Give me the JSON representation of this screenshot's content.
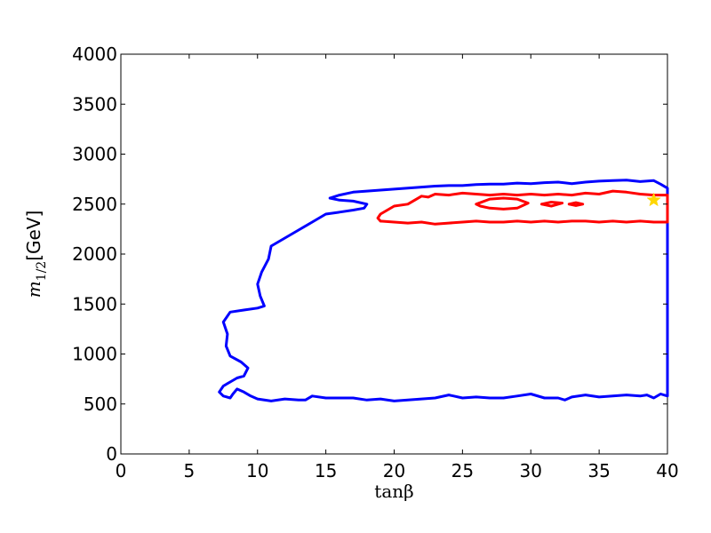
{
  "chart_data": {
    "type": "line",
    "title": "",
    "xlabel": "tanβ",
    "ylabel_math": "m",
    "ylabel_sub": "1/2",
    "ylabel_unit": "[GeV]",
    "xlim": [
      0,
      40
    ],
    "ylim": [
      0,
      4000
    ],
    "xticks": [
      0,
      5,
      10,
      15,
      20,
      25,
      30,
      35,
      40
    ],
    "yticks": [
      0,
      500,
      1000,
      1500,
      2000,
      2500,
      3000,
      3500,
      4000
    ],
    "grid": false,
    "colors": {
      "blue": "#0000ff",
      "red": "#ff0000",
      "star": "#ffd700"
    },
    "series": [
      {
        "color": "blue",
        "points": [
          [
            15.3,
            2560
          ],
          [
            16.0,
            2590
          ],
          [
            17.0,
            2620
          ],
          [
            18.0,
            2630
          ],
          [
            19.0,
            2640
          ],
          [
            20.0,
            2650
          ],
          [
            21.0,
            2660
          ],
          [
            22.0,
            2670
          ],
          [
            23.0,
            2680
          ],
          [
            24.0,
            2685
          ],
          [
            25.0,
            2685
          ],
          [
            26.0,
            2695
          ],
          [
            27.0,
            2700
          ],
          [
            28.0,
            2700
          ],
          [
            29.0,
            2710
          ],
          [
            30.0,
            2705
          ],
          [
            31.0,
            2715
          ],
          [
            32.0,
            2720
          ],
          [
            33.0,
            2705
          ],
          [
            34.0,
            2720
          ],
          [
            35.0,
            2730
          ],
          [
            36.0,
            2735
          ],
          [
            37.0,
            2740
          ],
          [
            38.0,
            2725
          ],
          [
            39.0,
            2735
          ],
          [
            39.5,
            2700
          ],
          [
            40.0,
            2660
          ],
          [
            40.0,
            580
          ],
          [
            39.5,
            600
          ],
          [
            39.0,
            560
          ],
          [
            38.5,
            590
          ],
          [
            38.0,
            580
          ],
          [
            37.0,
            590
          ],
          [
            36.0,
            580
          ],
          [
            35.0,
            570
          ],
          [
            34.0,
            590
          ],
          [
            33.0,
            570
          ],
          [
            32.5,
            540
          ],
          [
            32.0,
            560
          ],
          [
            31.0,
            560
          ],
          [
            30.0,
            600
          ],
          [
            29.0,
            580
          ],
          [
            28.0,
            560
          ],
          [
            27.0,
            560
          ],
          [
            26.0,
            570
          ],
          [
            25.0,
            560
          ],
          [
            24.0,
            590
          ],
          [
            23.0,
            560
          ],
          [
            22.0,
            550
          ],
          [
            21.0,
            540
          ],
          [
            20.0,
            530
          ],
          [
            19.0,
            550
          ],
          [
            18.0,
            540
          ],
          [
            17.0,
            560
          ],
          [
            16.0,
            560
          ],
          [
            15.0,
            560
          ],
          [
            14.0,
            580
          ],
          [
            13.5,
            540
          ],
          [
            13.0,
            540
          ],
          [
            12.0,
            550
          ],
          [
            11.0,
            530
          ],
          [
            10.0,
            550
          ],
          [
            9.5,
            580
          ],
          [
            9.0,
            620
          ],
          [
            8.5,
            650
          ],
          [
            8.2,
            600
          ],
          [
            8.0,
            560
          ],
          [
            7.5,
            580
          ],
          [
            7.2,
            620
          ],
          [
            7.5,
            680
          ],
          [
            8.0,
            720
          ],
          [
            8.5,
            760
          ],
          [
            9.0,
            780
          ],
          [
            9.3,
            860
          ],
          [
            8.8,
            920
          ],
          [
            8.0,
            980
          ],
          [
            7.7,
            1080
          ],
          [
            7.8,
            1200
          ],
          [
            7.5,
            1320
          ],
          [
            8.0,
            1420
          ],
          [
            9.0,
            1440
          ],
          [
            10.0,
            1460
          ],
          [
            10.5,
            1480
          ],
          [
            10.2,
            1580
          ],
          [
            10.0,
            1700
          ],
          [
            10.3,
            1820
          ],
          [
            10.8,
            1950
          ],
          [
            11.0,
            2080
          ],
          [
            12.0,
            2160
          ],
          [
            13.0,
            2240
          ],
          [
            14.0,
            2320
          ],
          [
            15.0,
            2400
          ],
          [
            16.0,
            2420
          ],
          [
            17.0,
            2440
          ],
          [
            17.8,
            2460
          ],
          [
            18.0,
            2500
          ],
          [
            17.0,
            2530
          ],
          [
            16.0,
            2540
          ],
          [
            15.3,
            2560
          ]
        ]
      },
      {
        "color": "red",
        "points": [
          [
            19.0,
            2330
          ],
          [
            20.0,
            2320
          ],
          [
            21.0,
            2310
          ],
          [
            22.0,
            2320
          ],
          [
            23.0,
            2300
          ],
          [
            24.0,
            2310
          ],
          [
            25.0,
            2320
          ],
          [
            26.0,
            2330
          ],
          [
            27.0,
            2320
          ],
          [
            28.0,
            2320
          ],
          [
            29.0,
            2330
          ],
          [
            30.0,
            2320
          ],
          [
            31.0,
            2330
          ],
          [
            32.0,
            2320
          ],
          [
            33.0,
            2330
          ],
          [
            34.0,
            2330
          ],
          [
            35.0,
            2320
          ],
          [
            36.0,
            2330
          ],
          [
            37.0,
            2320
          ],
          [
            38.0,
            2330
          ],
          [
            39.0,
            2320
          ],
          [
            40.0,
            2320
          ],
          [
            40.0,
            2590
          ],
          [
            39.0,
            2590
          ],
          [
            38.0,
            2600
          ],
          [
            37.0,
            2620
          ],
          [
            36.0,
            2630
          ],
          [
            35.0,
            2600
          ],
          [
            34.0,
            2610
          ],
          [
            33.0,
            2590
          ],
          [
            32.0,
            2600
          ],
          [
            31.0,
            2590
          ],
          [
            30.0,
            2600
          ],
          [
            29.0,
            2590
          ],
          [
            28.0,
            2600
          ],
          [
            27.0,
            2590
          ],
          [
            26.0,
            2600
          ],
          [
            25.0,
            2610
          ],
          [
            24.0,
            2590
          ],
          [
            23.0,
            2600
          ],
          [
            22.5,
            2570
          ],
          [
            22.0,
            2580
          ],
          [
            21.5,
            2540
          ],
          [
            21.0,
            2500
          ],
          [
            20.0,
            2480
          ],
          [
            19.0,
            2400
          ],
          [
            18.8,
            2360
          ],
          [
            19.0,
            2330
          ]
        ]
      },
      {
        "color": "red",
        "points": [
          [
            26.0,
            2500
          ],
          [
            27.0,
            2550
          ],
          [
            28.0,
            2560
          ],
          [
            29.0,
            2550
          ],
          [
            29.8,
            2510
          ],
          [
            29.0,
            2460
          ],
          [
            28.0,
            2450
          ],
          [
            27.0,
            2460
          ],
          [
            26.3,
            2480
          ],
          [
            26.0,
            2500
          ]
        ]
      },
      {
        "color": "red",
        "points": [
          [
            30.8,
            2500
          ],
          [
            31.5,
            2520
          ],
          [
            32.3,
            2510
          ],
          [
            31.5,
            2480
          ],
          [
            30.8,
            2500
          ]
        ]
      },
      {
        "color": "red",
        "points": [
          [
            32.8,
            2500
          ],
          [
            33.3,
            2515
          ],
          [
            33.8,
            2500
          ],
          [
            33.3,
            2485
          ],
          [
            32.8,
            2500
          ]
        ]
      }
    ],
    "markers": [
      {
        "type": "star",
        "x": 39.0,
        "y": 2540,
        "color": "star"
      }
    ]
  }
}
